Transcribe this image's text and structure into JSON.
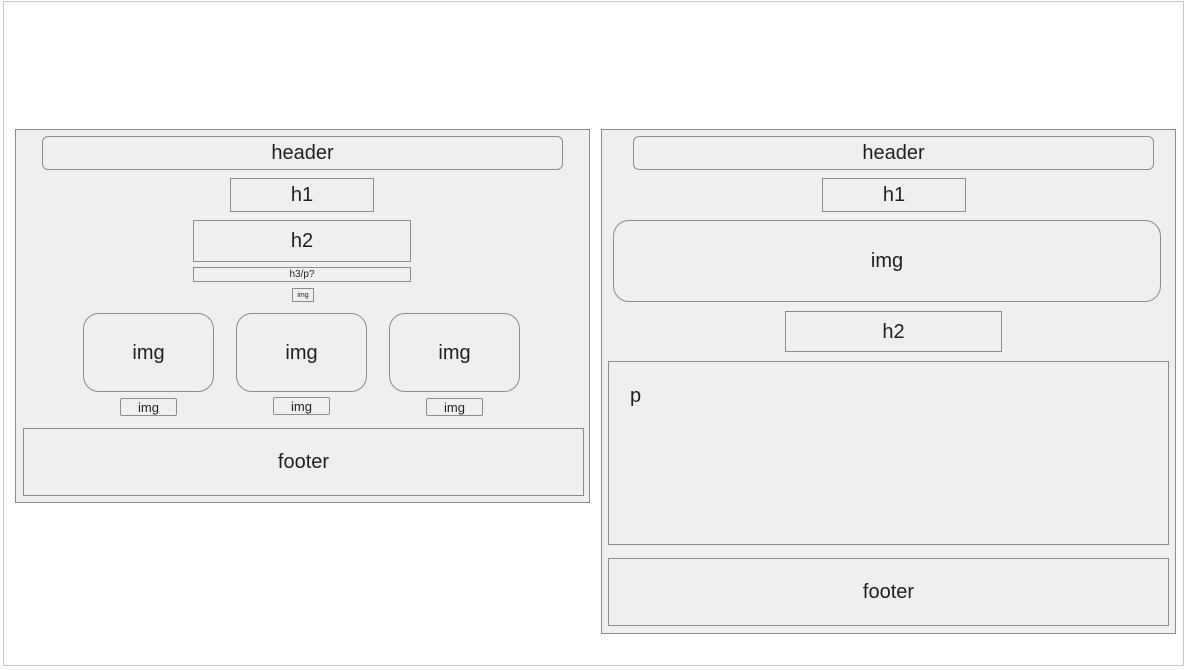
{
  "left_wireframe": {
    "header": "header",
    "h1": "h1",
    "h2": "h2",
    "h3p": "h3/p?",
    "small_img": "img",
    "cards": [
      {
        "img": "img",
        "caption": "img"
      },
      {
        "img": "img",
        "caption": "img"
      },
      {
        "img": "img",
        "caption": "img"
      }
    ],
    "footer": "footer"
  },
  "right_wireframe": {
    "header": "header",
    "h1": "h1",
    "img": "img",
    "h2": "h2",
    "p": "p",
    "footer": "footer"
  }
}
